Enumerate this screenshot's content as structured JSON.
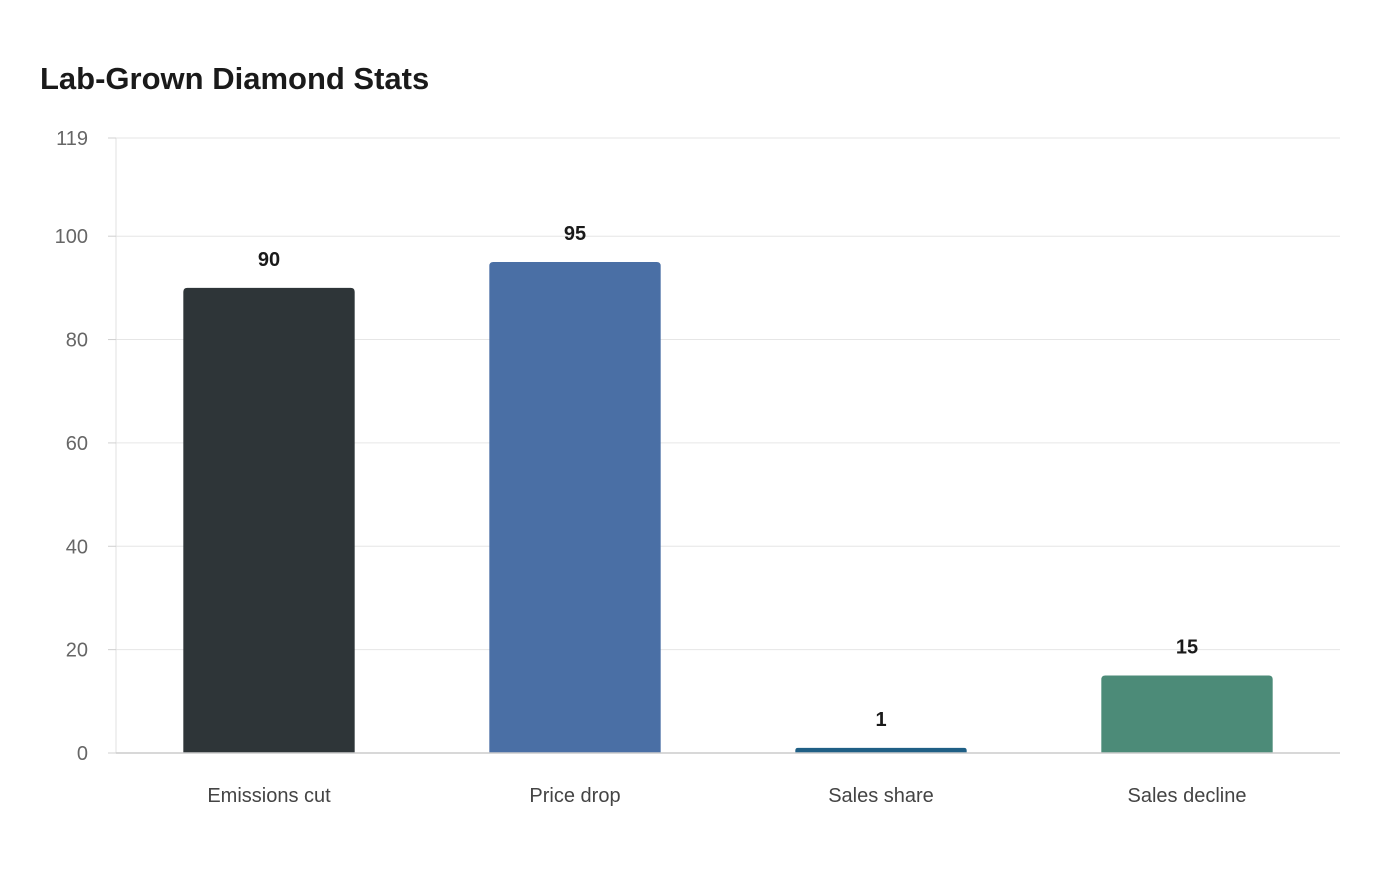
{
  "chart_data": {
    "type": "bar",
    "title": "Lab-Grown Diamond Stats",
    "xlabel": "",
    "ylabel": "",
    "categories": [
      "Emissions cut",
      "Price drop",
      "Sales share",
      "Sales decline"
    ],
    "values": [
      90,
      95,
      1,
      15
    ],
    "ylim": [
      0,
      119
    ],
    "yticks": [
      0,
      20,
      40,
      60,
      80,
      100,
      119
    ],
    "grid": true,
    "legend": "none",
    "colors": [
      "#2e3538",
      "#4a6fa5",
      "#1f5f85",
      "#4c8b78"
    ]
  }
}
